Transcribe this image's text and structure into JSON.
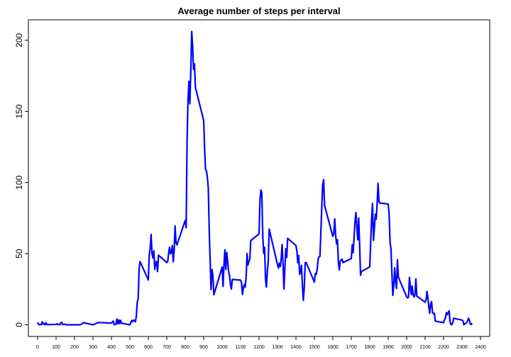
{
  "chart_data": {
    "type": "line",
    "title": "Average number of steps per interval",
    "x": [
      0,
      5,
      10,
      15,
      20,
      25,
      30,
      35,
      40,
      45,
      50,
      55,
      100,
      105,
      110,
      115,
      120,
      125,
      130,
      135,
      140,
      145,
      150,
      155,
      200,
      230,
      250,
      300,
      330,
      400,
      410,
      415,
      420,
      425,
      430,
      435,
      440,
      445,
      450,
      455,
      500,
      505,
      510,
      515,
      520,
      525,
      530,
      535,
      540,
      545,
      550,
      555,
      600,
      605,
      610,
      615,
      620,
      625,
      630,
      635,
      640,
      645,
      650,
      655,
      700,
      705,
      710,
      715,
      720,
      725,
      730,
      735,
      740,
      745,
      750,
      755,
      800,
      805,
      810,
      815,
      820,
      825,
      830,
      835,
      840,
      845,
      850,
      855,
      900,
      905,
      910,
      915,
      920,
      925,
      930,
      935,
      940,
      945,
      950,
      955,
      1000,
      1005,
      1010,
      1015,
      1020,
      1025,
      1030,
      1035,
      1040,
      1045,
      1050,
      1055,
      1100,
      1105,
      1110,
      1115,
      1120,
      1125,
      1130,
      1135,
      1140,
      1145,
      1150,
      1155,
      1200,
      1205,
      1210,
      1215,
      1220,
      1225,
      1230,
      1235,
      1240,
      1245,
      1250,
      1255,
      1300,
      1305,
      1310,
      1315,
      1320,
      1325,
      1330,
      1335,
      1340,
      1345,
      1350,
      1355,
      1400,
      1405,
      1410,
      1415,
      1420,
      1425,
      1430,
      1435,
      1440,
      1445,
      1450,
      1455,
      1500,
      1505,
      1510,
      1515,
      1520,
      1525,
      1530,
      1535,
      1540,
      1545,
      1550,
      1555,
      1600,
      1605,
      1610,
      1615,
      1620,
      1625,
      1630,
      1635,
      1640,
      1645,
      1650,
      1655,
      1700,
      1705,
      1710,
      1715,
      1720,
      1725,
      1730,
      1735,
      1740,
      1745,
      1750,
      1755,
      1800,
      1805,
      1810,
      1815,
      1820,
      1825,
      1830,
      1835,
      1840,
      1845,
      1850,
      1855,
      1900,
      1905,
      1910,
      1915,
      1920,
      1925,
      1930,
      1935,
      1940,
      1945,
      1950,
      1955,
      2000,
      2005,
      2010,
      2015,
      2020,
      2025,
      2030,
      2035,
      2040,
      2045,
      2050,
      2055,
      2100,
      2105,
      2110,
      2115,
      2120,
      2125,
      2130,
      2135,
      2140,
      2145,
      2150,
      2155,
      2200,
      2205,
      2210,
      2215,
      2220,
      2225,
      2230,
      2235,
      2240,
      2245,
      2250,
      2255,
      2300,
      2305,
      2310,
      2315,
      2320,
      2325,
      2330,
      2335,
      2340,
      2345,
      2350,
      2355
    ],
    "series": [
      {
        "color": "#0000ff",
        "values": [
          1.7,
          0.3,
          0.1,
          0.2,
          0.1,
          2.1,
          0.5,
          0.9,
          0,
          1.5,
          0.3,
          0.1,
          0.3,
          0.7,
          0.2,
          0.3,
          0,
          1.1,
          1.8,
          0.2,
          0.2,
          0.4,
          0.3,
          0,
          0,
          0,
          1.5,
          0,
          1.6,
          1.2,
          2.6,
          0,
          0.3,
          0.4,
          4.1,
          0.7,
          3.5,
          0.8,
          3.1,
          1.1,
          0,
          1.6,
          3,
          2.2,
          3.3,
          3,
          2.1,
          6,
          16,
          18.3,
          39.5,
          44.5,
          31.5,
          49.3,
          53.8,
          63.5,
          50,
          47,
          52,
          39,
          44,
          44.5,
          37.4,
          49,
          43.8,
          44.4,
          50.5,
          54.5,
          49.9,
          50.9,
          55.7,
          44.3,
          52.3,
          69.5,
          57.8,
          56.2,
          73.4,
          68.2,
          129.4,
          157.5,
          171.2,
          155.4,
          177.3,
          206.2,
          195.9,
          179.6,
          183.4,
          167,
          143.5,
          124,
          109.1,
          108.1,
          103.7,
          96,
          66.2,
          45.2,
          24.8,
          38.8,
          35,
          21.1,
          40.6,
          27,
          42.4,
          52.7,
          38.9,
          50.8,
          44.3,
          37.4,
          34.7,
          28.3,
          25.1,
          31.9,
          31.4,
          29.7,
          21.3,
          25.5,
          28.4,
          26.5,
          33.4,
          50,
          42,
          44.6,
          46,
          59.2,
          63.9,
          87.7,
          94.8,
          92.8,
          63.4,
          50.2,
          54.5,
          32.4,
          26.5,
          37.7,
          45.1,
          67.3,
          42.3,
          39.9,
          43.3,
          41,
          46.2,
          56.4,
          42.8,
          25.1,
          40,
          53.5,
          47.3,
          60.8,
          55.7,
          52,
          43.6,
          48.7,
          35.5,
          37.5,
          41.8,
          27.5,
          17.1,
          26.1,
          43.6,
          43.8,
          30,
          36.1,
          35.5,
          38.8,
          46,
          47.8,
          48.1,
          65.3,
          82.9,
          98.7,
          102.1,
          84,
          62.1,
          64.1,
          74.5,
          63.2,
          56.9,
          59.8,
          43.9,
          38.6,
          44.7,
          45.5,
          46.2,
          43.7,
          46.6,
          56.3,
          50.7,
          61.2,
          72.7,
          78.9,
          68.9,
          59.7,
          75.1,
          56.5,
          34.8,
          37.5,
          40.7,
          58,
          74.7,
          85.3,
          59.3,
          67.8,
          77.7,
          74.2,
          85.3,
          99.5,
          86.6,
          85.6,
          84.9,
          77.8,
          58,
          53.4,
          36.3,
          20.7,
          27.4,
          40,
          30.2,
          25.5,
          45.7,
          33.5,
          19.6,
          19,
          19.3,
          33.3,
          26.8,
          21.2,
          27.3,
          21.3,
          19.5,
          21.3,
          32.3,
          20.2,
          15.9,
          17.2,
          23.5,
          19.2,
          12.5,
          8.1,
          14.7,
          16.3,
          8.7,
          7.8,
          8.1,
          2.6,
          1.5,
          3.7,
          4.8,
          8.5,
          7.1,
          8.7,
          9.8,
          2.2,
          0.3,
          0.1,
          1.6,
          4.6,
          3.3,
          2.8,
          0,
          0.8,
          1,
          1.6,
          2.6,
          4.7,
          3.3,
          0.6,
          0.2,
          1.1
        ]
      }
    ],
    "xlim": [
      -50,
      2450
    ],
    "ylim": [
      -8.2,
      214.4
    ],
    "xticks": [
      0,
      100,
      200,
      300,
      400,
      500,
      600,
      700,
      800,
      900,
      1000,
      1100,
      1200,
      1300,
      1400,
      1500,
      1600,
      1700,
      1800,
      1900,
      2000,
      2100,
      2200,
      2300,
      2400
    ],
    "yticks": [
      0,
      50,
      100,
      150,
      200
    ]
  }
}
